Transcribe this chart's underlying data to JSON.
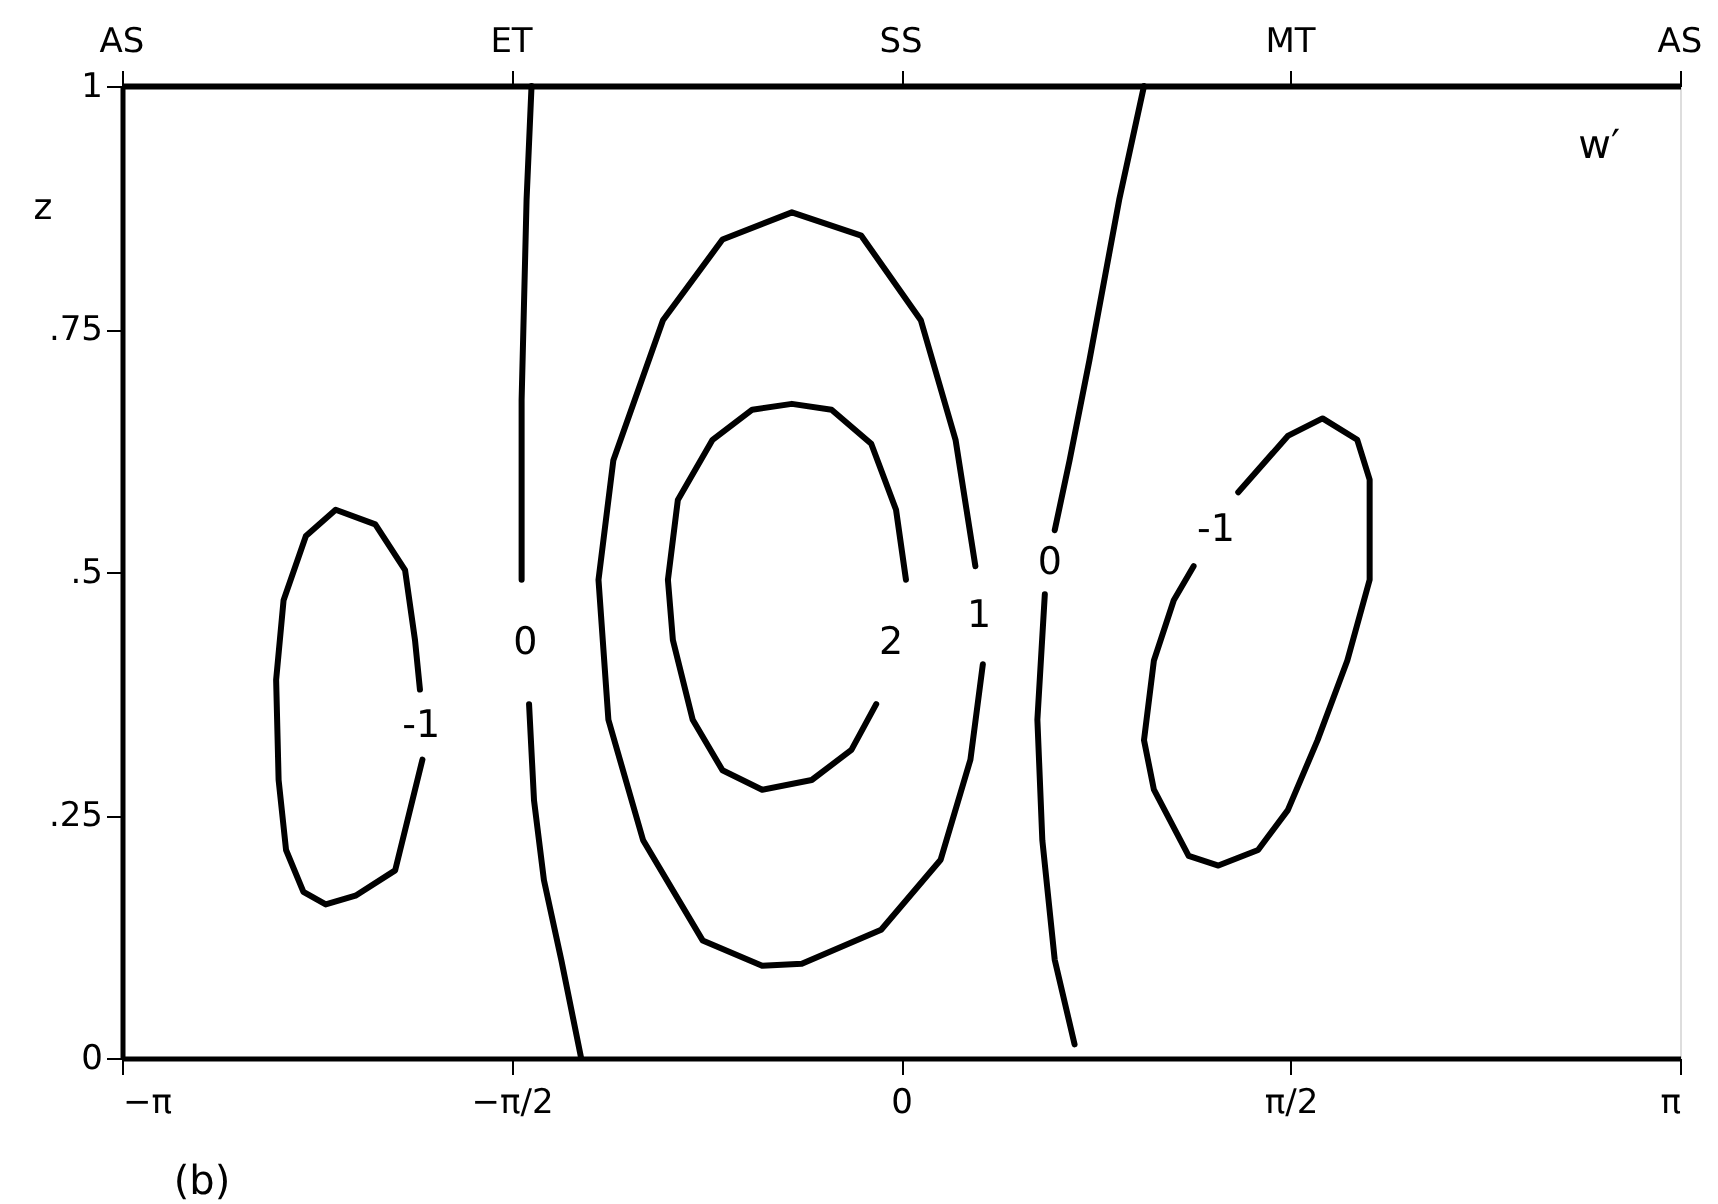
{
  "chart_data": {
    "type": "line",
    "ylabel": "z",
    "xlim": [
      -3.1416,
      3.1416
    ],
    "xticks": [
      {
        "value": -3.1416,
        "label": "−π"
      },
      {
        "value": -1.5708,
        "label": "−π/2"
      },
      0,
      {
        "value": 1.5708,
        "label": "π/2"
      },
      {
        "value": 3.1416,
        "label": "π"
      }
    ],
    "ylim": [
      0,
      1
    ],
    "yticks": [
      0,
      {
        "value": 0.25,
        "label": ".25"
      },
      {
        "value": 0.5,
        "label": ".5"
      },
      {
        "value": 0.75,
        "label": ".75"
      },
      1
    ],
    "series": [
      {
        "name": "-1",
        "color": "#000000",
        "x": [
          -1.93,
          -2.04,
          -2.2,
          -2.32,
          -2.41,
          -2.48,
          -2.51,
          -2.52,
          -2.49,
          -2.4,
          -2.28,
          -2.12,
          -2.0,
          -1.96,
          -1.94
        ],
        "values": [
          0.307,
          0.193,
          0.167,
          0.158,
          0.171,
          0.214,
          0.286,
          0.389,
          0.471,
          0.537,
          0.564,
          0.549,
          0.502,
          0.43,
          0.379
        ]
      },
      {
        "name": "0",
        "color": "#000000",
        "x": [
          -1.49,
          -1.51,
          -1.53,
          -1.53,
          null,
          -1.5,
          -1.48,
          -1.44,
          -1.37,
          -1.29
        ],
        "values": [
          1.0,
          0.883,
          0.677,
          0.492,
          null,
          0.364,
          0.265,
          0.183,
          0.101,
          0.0
        ]
      },
      {
        "name": "1",
        "color": "#000000",
        "x": [
          0.33,
          0.28,
          0.16,
          -0.08,
          -0.4,
          -0.56,
          -0.8,
          -1.04,
          -1.18,
          -1.22,
          -1.16,
          -0.96,
          -0.72,
          -0.44,
          -0.16,
          0.08,
          0.22,
          0.3
        ],
        "values": [
          0.405,
          0.307,
          0.204,
          0.132,
          0.097,
          0.095,
          0.121,
          0.224,
          0.348,
          0.492,
          0.615,
          0.759,
          0.842,
          0.87,
          0.846,
          0.759,
          0.636,
          0.506
        ]
      },
      {
        "name": "2",
        "color": "#000000",
        "x": [
          -0.1,
          -0.2,
          -0.36,
          -0.56,
          -0.72,
          -0.84,
          -0.92,
          -0.94,
          -0.9,
          -0.76,
          -0.6,
          -0.44,
          -0.28,
          -0.12,
          -0.02,
          0.02
        ],
        "values": [
          0.364,
          0.317,
          0.286,
          0.276,
          0.296,
          0.348,
          0.43,
          0.492,
          0.574,
          0.636,
          0.667,
          0.673,
          0.667,
          0.632,
          0.564,
          0.492
        ]
      },
      {
        "name": "0",
        "color": "#000000",
        "x": [
          0.98,
          0.88,
          0.76,
          0.68,
          0.62,
          null,
          0.58,
          0.55,
          0.57,
          0.62,
          0.7
        ],
        "values": [
          1.0,
          0.883,
          0.718,
          0.615,
          0.543,
          null,
          0.477,
          0.348,
          0.224,
          0.101,
          0.014
        ]
      },
      {
        "name": "-1",
        "color": "#000000",
        "x": [
          1.18,
          1.1,
          1.02,
          0.98,
          1.02,
          1.16,
          1.28,
          1.44,
          1.56,
          1.68,
          1.8,
          1.89,
          1.89,
          1.84,
          1.7,
          1.56,
          1.36
        ],
        "values": [
          0.506,
          0.471,
          0.409,
          0.327,
          0.276,
          0.208,
          0.198,
          0.214,
          0.255,
          0.327,
          0.409,
          0.492,
          0.595,
          0.636,
          0.658,
          0.64,
          0.582
        ]
      }
    ],
    "annotations": [
      "AS",
      "ET",
      "SS",
      "MT",
      "AS",
      "w′",
      "(b)"
    ]
  }
}
